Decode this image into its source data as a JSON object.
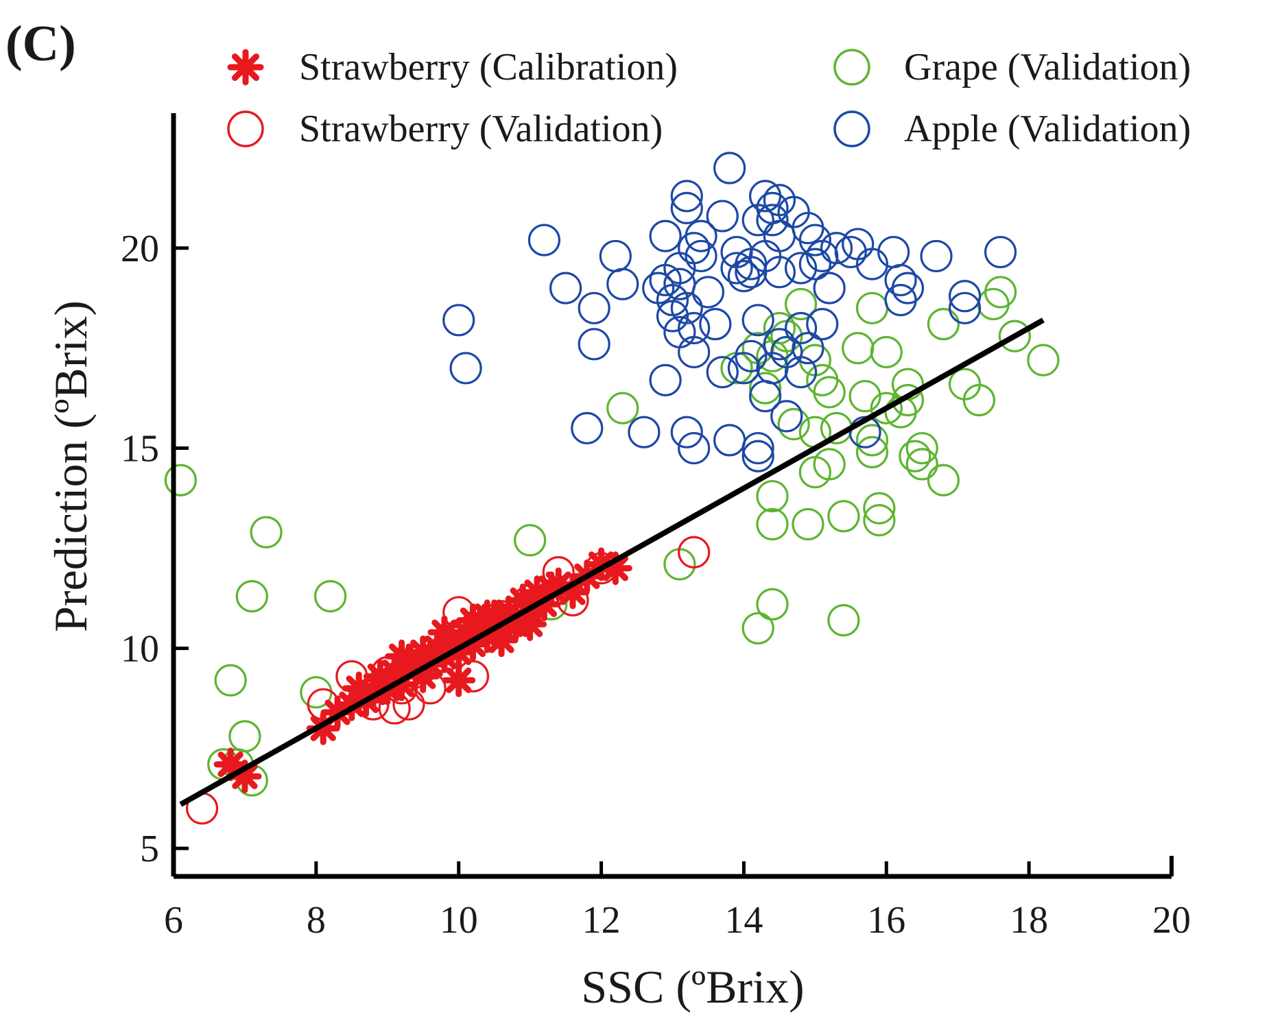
{
  "panel_label": "(C)",
  "chart_data": {
    "type": "scatter",
    "title": "",
    "xlabel": "SSC (ºBrix)",
    "ylabel": "Prediction (ºBrix)",
    "xlim": [
      6,
      20
    ],
    "ylim": [
      4.3,
      23.2
    ],
    "xticks": [
      "6",
      "8",
      "10",
      "12",
      "14",
      "16",
      "18",
      "20"
    ],
    "yticks": [
      "5",
      "10",
      "15",
      "20"
    ],
    "legend_position": "top",
    "fit_line": {
      "x": [
        6.1,
        18.2
      ],
      "y": [
        6.1,
        18.2
      ],
      "color": "#000000"
    },
    "series": [
      {
        "name": "Strawberry (Calibration)",
        "marker": "asterisk",
        "color": "#e8191e",
        "points": [
          [
            6.8,
            7.1
          ],
          [
            7.0,
            6.8
          ],
          [
            8.1,
            8.0
          ],
          [
            8.3,
            8.4
          ],
          [
            8.5,
            8.6
          ],
          [
            8.6,
            9.0
          ],
          [
            8.8,
            8.9
          ],
          [
            8.9,
            9.3
          ],
          [
            9.0,
            9.0
          ],
          [
            9.1,
            9.4
          ],
          [
            9.2,
            9.1
          ],
          [
            9.3,
            9.7
          ],
          [
            9.4,
            9.5
          ],
          [
            9.5,
            9.9
          ],
          [
            9.6,
            9.6
          ],
          [
            9.7,
            10.0
          ],
          [
            9.8,
            9.8
          ],
          [
            9.9,
            10.2
          ],
          [
            10.0,
            9.9
          ],
          [
            10.0,
            9.2
          ],
          [
            10.1,
            10.4
          ],
          [
            10.2,
            10.1
          ],
          [
            10.3,
            10.6
          ],
          [
            10.4,
            10.3
          ],
          [
            10.5,
            10.8
          ],
          [
            10.6,
            10.5
          ],
          [
            10.7,
            10.9
          ],
          [
            10.8,
            10.6
          ],
          [
            10.9,
            11.2
          ],
          [
            11.0,
            10.9
          ],
          [
            11.1,
            11.4
          ],
          [
            11.2,
            11.1
          ],
          [
            11.4,
            11.6
          ],
          [
            11.6,
            11.4
          ],
          [
            11.8,
            11.8
          ],
          [
            12.0,
            12.1
          ],
          [
            12.2,
            12.0
          ],
          [
            9.2,
            9.8
          ],
          [
            9.5,
            9.3
          ],
          [
            10.2,
            10.7
          ],
          [
            10.6,
            10.2
          ],
          [
            11.3,
            11.5
          ],
          [
            8.7,
            8.7
          ],
          [
            9.8,
            10.4
          ],
          [
            11.0,
            10.6
          ],
          [
            10.4,
            10.8
          ]
        ]
      },
      {
        "name": "Strawberry (Validation)",
        "marker": "circle",
        "color": "#e8191e",
        "points": [
          [
            6.4,
            6.0
          ],
          [
            8.1,
            8.6
          ],
          [
            8.5,
            9.3
          ],
          [
            8.8,
            8.6
          ],
          [
            9.0,
            9.4
          ],
          [
            9.1,
            8.5
          ],
          [
            9.3,
            8.6
          ],
          [
            9.4,
            9.4
          ],
          [
            9.6,
            9.0
          ],
          [
            9.8,
            9.8
          ],
          [
            10.0,
            10.9
          ],
          [
            10.2,
            9.3
          ],
          [
            10.4,
            10.6
          ],
          [
            10.6,
            10.8
          ],
          [
            11.0,
            11.2
          ],
          [
            11.4,
            11.9
          ],
          [
            11.6,
            11.2
          ],
          [
            13.3,
            12.4
          ],
          [
            9.2,
            9.0
          ],
          [
            10.0,
            10.2
          ],
          [
            12.0,
            12.0
          ]
        ]
      },
      {
        "name": "Grape (Validation)",
        "marker": "circle",
        "color": "#5db531",
        "points": [
          [
            6.1,
            14.2
          ],
          [
            6.7,
            7.1
          ],
          [
            6.8,
            9.2
          ],
          [
            6.9,
            7.1
          ],
          [
            7.0,
            7.8
          ],
          [
            7.1,
            6.7
          ],
          [
            7.1,
            11.3
          ],
          [
            7.3,
            12.9
          ],
          [
            8.0,
            8.9
          ],
          [
            8.2,
            11.3
          ],
          [
            11.0,
            12.7
          ],
          [
            11.3,
            11.1
          ],
          [
            12.3,
            16.0
          ],
          [
            13.1,
            12.1
          ],
          [
            13.9,
            17.0
          ],
          [
            14.2,
            17.5
          ],
          [
            14.2,
            10.5
          ],
          [
            14.3,
            16.5
          ],
          [
            14.4,
            17.3
          ],
          [
            14.4,
            13.8
          ],
          [
            14.4,
            11.1
          ],
          [
            14.4,
            13.1
          ],
          [
            14.5,
            18.0
          ],
          [
            14.6,
            17.8
          ],
          [
            14.7,
            15.6
          ],
          [
            14.8,
            18.6
          ],
          [
            14.9,
            13.1
          ],
          [
            15.0,
            17.2
          ],
          [
            15.0,
            14.4
          ],
          [
            15.1,
            16.7
          ],
          [
            15.2,
            16.4
          ],
          [
            15.2,
            14.6
          ],
          [
            15.3,
            15.5
          ],
          [
            15.4,
            13.3
          ],
          [
            15.4,
            10.7
          ],
          [
            15.6,
            17.5
          ],
          [
            15.7,
            16.3
          ],
          [
            15.8,
            18.5
          ],
          [
            15.8,
            14.9
          ],
          [
            15.8,
            15.2
          ],
          [
            15.9,
            13.2
          ],
          [
            15.9,
            13.5
          ],
          [
            16.0,
            17.4
          ],
          [
            16.0,
            16.0
          ],
          [
            16.2,
            15.9
          ],
          [
            16.3,
            16.2
          ],
          [
            16.3,
            16.6
          ],
          [
            16.4,
            14.8
          ],
          [
            16.5,
            15.0
          ],
          [
            16.5,
            14.6
          ],
          [
            16.8,
            18.1
          ],
          [
            16.8,
            14.2
          ],
          [
            17.1,
            16.6
          ],
          [
            17.3,
            16.2
          ],
          [
            17.5,
            18.6
          ],
          [
            17.6,
            18.9
          ],
          [
            17.8,
            17.8
          ],
          [
            18.2,
            17.2
          ],
          [
            15.0,
            15.4
          ]
        ]
      },
      {
        "name": "Apple (Validation)",
        "marker": "circle",
        "color": "#1d48a6",
        "points": [
          [
            10.0,
            18.2
          ],
          [
            10.1,
            17.0
          ],
          [
            11.2,
            20.2
          ],
          [
            11.5,
            19.0
          ],
          [
            11.8,
            15.5
          ],
          [
            11.9,
            18.5
          ],
          [
            11.9,
            17.6
          ],
          [
            12.2,
            19.8
          ],
          [
            12.3,
            19.1
          ],
          [
            12.6,
            15.4
          ],
          [
            12.8,
            19.0
          ],
          [
            12.9,
            20.3
          ],
          [
            12.9,
            19.2
          ],
          [
            12.9,
            16.7
          ],
          [
            13.0,
            18.7
          ],
          [
            13.0,
            18.3
          ],
          [
            13.1,
            17.9
          ],
          [
            13.1,
            19.5
          ],
          [
            13.2,
            21.0
          ],
          [
            13.2,
            21.3
          ],
          [
            13.2,
            15.4
          ],
          [
            13.2,
            18.5
          ],
          [
            13.3,
            20.0
          ],
          [
            13.3,
            18.0
          ],
          [
            13.3,
            17.4
          ],
          [
            13.3,
            15.0
          ],
          [
            13.4,
            19.8
          ],
          [
            13.5,
            18.9
          ],
          [
            13.6,
            18.1
          ],
          [
            13.7,
            16.9
          ],
          [
            13.7,
            20.8
          ],
          [
            13.8,
            22.0
          ],
          [
            13.8,
            15.2
          ],
          [
            13.9,
            19.5
          ],
          [
            13.9,
            19.9
          ],
          [
            14.0,
            19.3
          ],
          [
            14.0,
            17.0
          ],
          [
            14.1,
            19.6
          ],
          [
            14.1,
            19.4
          ],
          [
            14.2,
            18.2
          ],
          [
            14.2,
            20.7
          ],
          [
            14.2,
            14.8
          ],
          [
            14.2,
            15.0
          ],
          [
            14.3,
            21.3
          ],
          [
            14.3,
            19.8
          ],
          [
            14.3,
            16.3
          ],
          [
            14.4,
            21.0
          ],
          [
            14.4,
            20.7
          ],
          [
            14.4,
            17.0
          ],
          [
            14.5,
            21.2
          ],
          [
            14.5,
            20.3
          ],
          [
            14.5,
            19.4
          ],
          [
            14.5,
            17.6
          ],
          [
            14.6,
            17.4
          ],
          [
            14.6,
            15.8
          ],
          [
            14.7,
            20.9
          ],
          [
            14.8,
            19.5
          ],
          [
            14.8,
            18.0
          ],
          [
            14.9,
            20.5
          ],
          [
            14.9,
            17.5
          ],
          [
            15.0,
            20.2
          ],
          [
            15.0,
            19.6
          ],
          [
            15.1,
            19.8
          ],
          [
            15.1,
            18.1
          ],
          [
            15.2,
            19.0
          ],
          [
            15.3,
            20.0
          ],
          [
            15.5,
            19.9
          ],
          [
            15.6,
            20.1
          ],
          [
            15.7,
            15.4
          ],
          [
            15.8,
            19.6
          ],
          [
            16.1,
            19.9
          ],
          [
            16.2,
            18.7
          ],
          [
            16.2,
            19.2
          ],
          [
            16.3,
            19.0
          ],
          [
            16.7,
            19.8
          ],
          [
            17.1,
            18.8
          ],
          [
            17.1,
            18.5
          ],
          [
            17.6,
            19.9
          ],
          [
            13.1,
            19.1
          ],
          [
            13.4,
            20.3
          ],
          [
            14.8,
            16.9
          ],
          [
            14.1,
            17.3
          ]
        ]
      }
    ]
  }
}
